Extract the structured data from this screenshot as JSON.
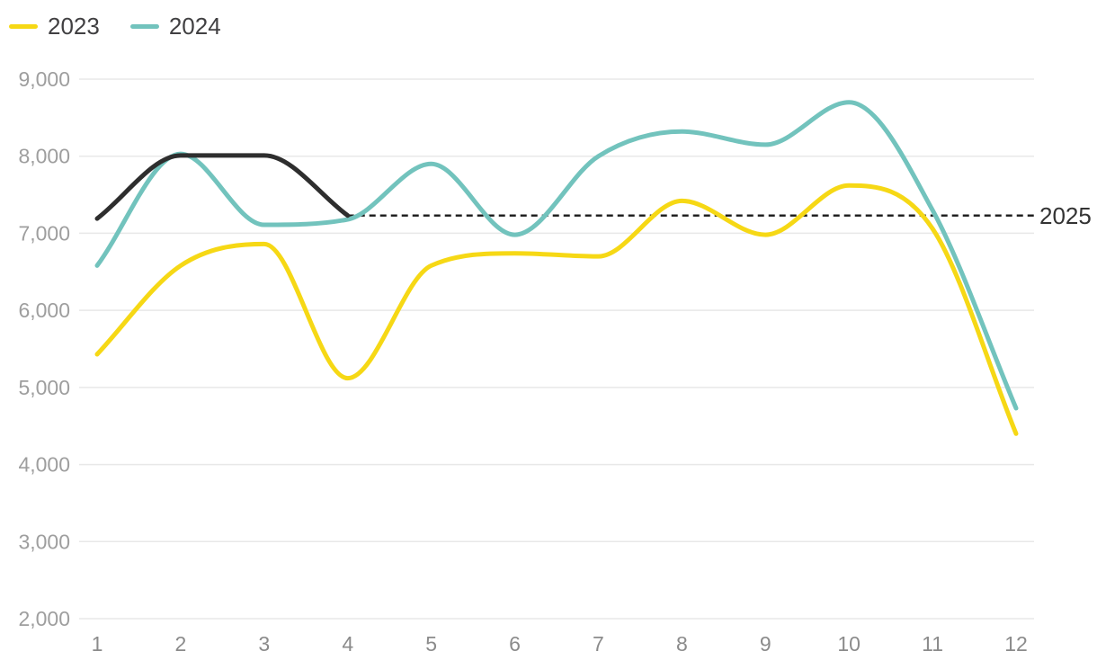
{
  "chart_data": {
    "type": "line",
    "title": "",
    "xlabel": "",
    "ylabel": "",
    "x": [
      1,
      2,
      3,
      4,
      5,
      6,
      7,
      8,
      9,
      10,
      11,
      12
    ],
    "x_tick_labels": [
      "1",
      "2",
      "3",
      "4",
      "5",
      "6",
      "7",
      "8",
      "9",
      "10",
      "11",
      "12"
    ],
    "y_ticks": [
      2000,
      3000,
      4000,
      5000,
      6000,
      7000,
      8000,
      9000
    ],
    "y_tick_labels": [
      "2,000",
      "3,000",
      "4,000",
      "5,000",
      "6,000",
      "7,000",
      "8,000",
      "9,000"
    ],
    "ylim": [
      2000,
      9000
    ],
    "grid": "horizontal",
    "legend_position": "top-left",
    "series": [
      {
        "name": "2023",
        "color": "#F6D815",
        "in_legend": true,
        "x": [
          1,
          2,
          3,
          4,
          5,
          6,
          7,
          8,
          9,
          10,
          11,
          12
        ],
        "values": [
          5430,
          6580,
          6860,
          5120,
          6580,
          6740,
          6700,
          7420,
          6980,
          7620,
          7060,
          4400
        ]
      },
      {
        "name": "2024",
        "color": "#72C3BD",
        "in_legend": true,
        "x": [
          1,
          2,
          3,
          4,
          5,
          6,
          7,
          8,
          9,
          10,
          11,
          12
        ],
        "values": [
          6580,
          8030,
          7110,
          7180,
          7900,
          6980,
          8000,
          8320,
          8150,
          8700,
          7300,
          4730
        ]
      },
      {
        "name": "2025",
        "color": "#2E2E2E",
        "in_legend": false,
        "x": [
          1,
          2,
          3,
          4
        ],
        "values": [
          7190,
          8010,
          8010,
          7230
        ]
      }
    ],
    "reference_line": {
      "label": "2025",
      "value": 7230,
      "from_x": 4,
      "style": "dashed",
      "color": "#1A1A1A",
      "label_color": "#333333"
    },
    "colors": {
      "background": "#FFFFFF",
      "grid": "#E8E8E8",
      "y_axis_text": "#9E9E9E",
      "x_axis_text": "#8B8B8B",
      "legend_text": "#414042"
    }
  }
}
